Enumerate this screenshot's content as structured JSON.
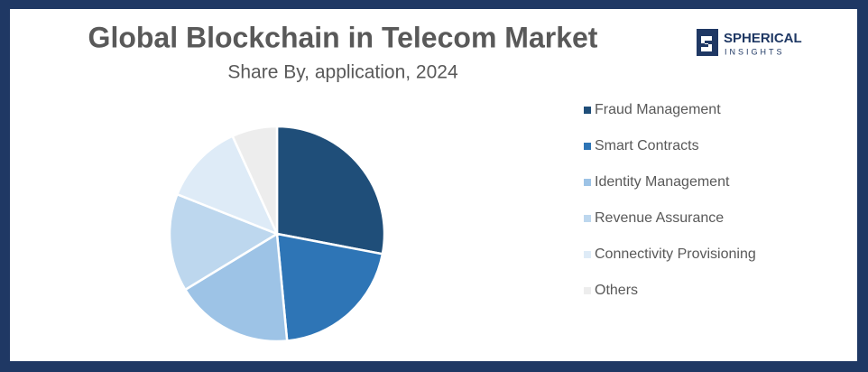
{
  "chart_data": {
    "type": "pie",
    "title": "Global Blockchain in Telecom Market",
    "subtitle": "Share By, application, 2024",
    "categories": [
      "Fraud Management",
      "Smart Contracts",
      "Identity Management",
      "Revenue Assurance",
      "Connectivity Provisioning",
      "Others"
    ],
    "values": [
      28,
      20.5,
      17.8,
      14.7,
      12.2,
      6.8
    ],
    "colors": [
      "#1f4e79",
      "#2e75b6",
      "#9dc3e6",
      "#bdd7ee",
      "#deebf7",
      "#ededed"
    ],
    "legend": "right"
  },
  "logo": {
    "name": "SPHERICAL",
    "tagline": "INSIGHTS"
  }
}
